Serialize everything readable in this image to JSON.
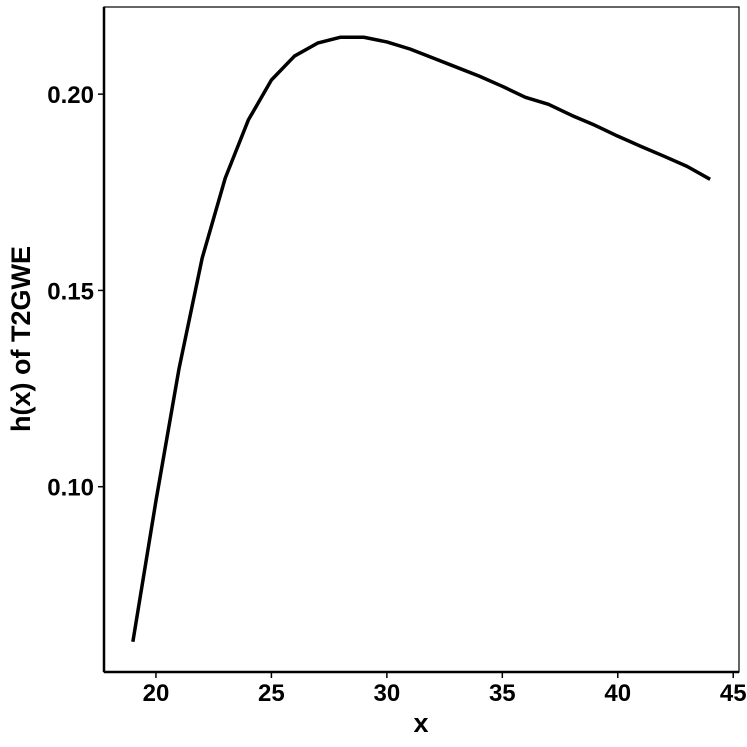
{
  "chart_data": {
    "type": "line",
    "x_label": "x",
    "y_label": "h(x) of T2GWE",
    "x": [
      19,
      20,
      21,
      22,
      23,
      24,
      25,
      26,
      27,
      28,
      29,
      30,
      31,
      32,
      33,
      34,
      35,
      36,
      37,
      38,
      39,
      40,
      41,
      42,
      43,
      44
    ],
    "series": [
      {
        "color": "#000000",
        "values": [
          0.0605,
          0.0964,
          0.1301,
          0.1582,
          0.1786,
          0.1934,
          0.2036,
          0.2097,
          0.213,
          0.2145,
          0.2145,
          0.2133,
          0.2115,
          0.2092,
          0.2069,
          0.2046,
          0.202,
          0.1992,
          0.1974,
          0.1946,
          0.1921,
          0.1893,
          0.1867,
          0.1842,
          0.1816,
          0.1783
        ]
      }
    ],
    "xlim": [
      17.75,
      45.25
    ],
    "ylim": [
      0.0528,
      0.2222
    ],
    "xticks": [
      20,
      25,
      30,
      35,
      40,
      45
    ],
    "yticks": [
      {
        "value": 0.1,
        "label": "0.10"
      },
      0.15,
      {
        "value": 0.2,
        "label": "0.20"
      }
    ],
    "grid": false
  }
}
